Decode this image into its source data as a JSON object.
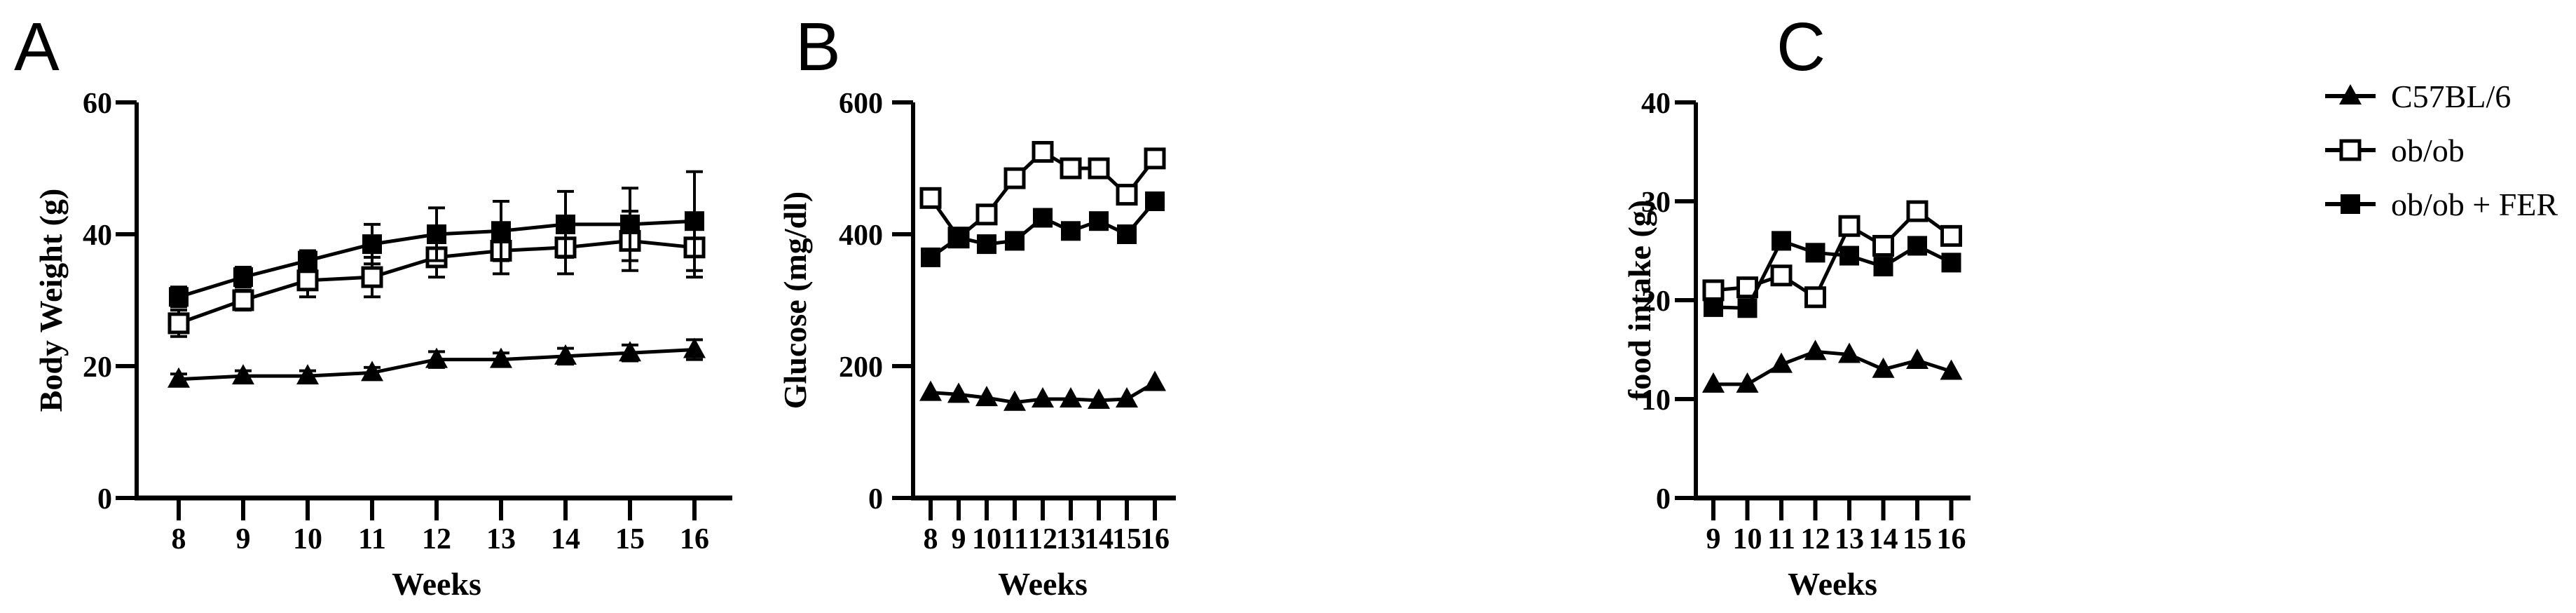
{
  "figure_background": "#ffffff",
  "ink_color": "#000000",
  "legend": {
    "position": "right",
    "entries": [
      {
        "label": "C57BL/6",
        "marker": "filled-triangle-icon"
      },
      {
        "label": "ob/ob",
        "marker": "open-square-icon"
      },
      {
        "label": "ob/ob + FER",
        "marker": "filled-square-icon"
      }
    ]
  },
  "chart_data": [
    {
      "type": "line",
      "panel_label": "A",
      "ylabel": "Body Weight (g)",
      "xlabel": "Weeks",
      "x": [
        8,
        9,
        10,
        11,
        12,
        13,
        14,
        15,
        16
      ],
      "y_ticks": [
        0,
        20,
        40,
        60
      ],
      "ylim": [
        0,
        60
      ],
      "grid": false,
      "error_bars": true,
      "series": [
        {
          "name": "C57BL/6",
          "marker": "filled-triangle",
          "values": [
            18,
            18.5,
            18.5,
            19,
            21,
            21,
            21.5,
            22,
            22.5
          ],
          "errors": [
            0.8,
            0.8,
            0.8,
            0.8,
            1.2,
            1,
            1.2,
            1.2,
            1.5
          ]
        },
        {
          "name": "ob/ob",
          "marker": "open-square",
          "values": [
            26.5,
            30,
            33,
            33.5,
            36.5,
            37.5,
            38,
            39,
            38
          ],
          "errors": [
            2,
            1.5,
            2.5,
            3,
            3,
            3.5,
            4,
            4.5,
            4.5
          ]
        },
        {
          "name": "ob/ob + FER",
          "marker": "filled-square",
          "values": [
            30.5,
            33.5,
            36,
            38.5,
            40,
            40.5,
            41.5,
            41.5,
            42
          ],
          "errors": [
            1.5,
            1.5,
            1.5,
            3,
            4,
            4.5,
            5,
            5.5,
            7.5
          ]
        }
      ]
    },
    {
      "type": "line",
      "panel_label": "B",
      "ylabel": "Glucose (mg/dl)",
      "xlabel": "Weeks",
      "x": [
        8,
        9,
        10,
        11,
        12,
        13,
        14,
        15,
        16
      ],
      "y_ticks": [
        0,
        200,
        400,
        600
      ],
      "ylim": [
        0,
        600
      ],
      "grid": false,
      "error_bars": false,
      "series": [
        {
          "name": "C57BL/6",
          "marker": "filled-triangle",
          "values": [
            160,
            157,
            152,
            145,
            150,
            150,
            148,
            150,
            175
          ]
        },
        {
          "name": "ob/ob",
          "marker": "open-square",
          "values": [
            455,
            395,
            430,
            485,
            525,
            500,
            500,
            460,
            515
          ]
        },
        {
          "name": "ob/ob + FER",
          "marker": "filled-square",
          "values": [
            365,
            395,
            385,
            390,
            425,
            405,
            420,
            400,
            450
          ]
        }
      ]
    },
    {
      "type": "line",
      "panel_label": "C",
      "ylabel": "food intake (g)",
      "xlabel": "Weeks",
      "x": [
        9,
        10,
        11,
        12,
        13,
        14,
        15,
        16
      ],
      "y_ticks": [
        0,
        10,
        20,
        30,
        40
      ],
      "ylim": [
        0,
        40
      ],
      "grid": false,
      "error_bars": false,
      "series": [
        {
          "name": "C57BL/6",
          "marker": "filled-triangle",
          "values": [
            11.5,
            11.5,
            13.5,
            14.8,
            14.5,
            13,
            13.9,
            12.8
          ]
        },
        {
          "name": "ob/ob",
          "marker": "open-square",
          "values": [
            21,
            21.3,
            22.5,
            20.3,
            27.5,
            25.5,
            29,
            26.5
          ]
        },
        {
          "name": "ob/ob + FER",
          "marker": "filled-square",
          "values": [
            19.3,
            19.2,
            26,
            24.8,
            24.5,
            23.4,
            25.5,
            23.8
          ]
        }
      ]
    }
  ]
}
